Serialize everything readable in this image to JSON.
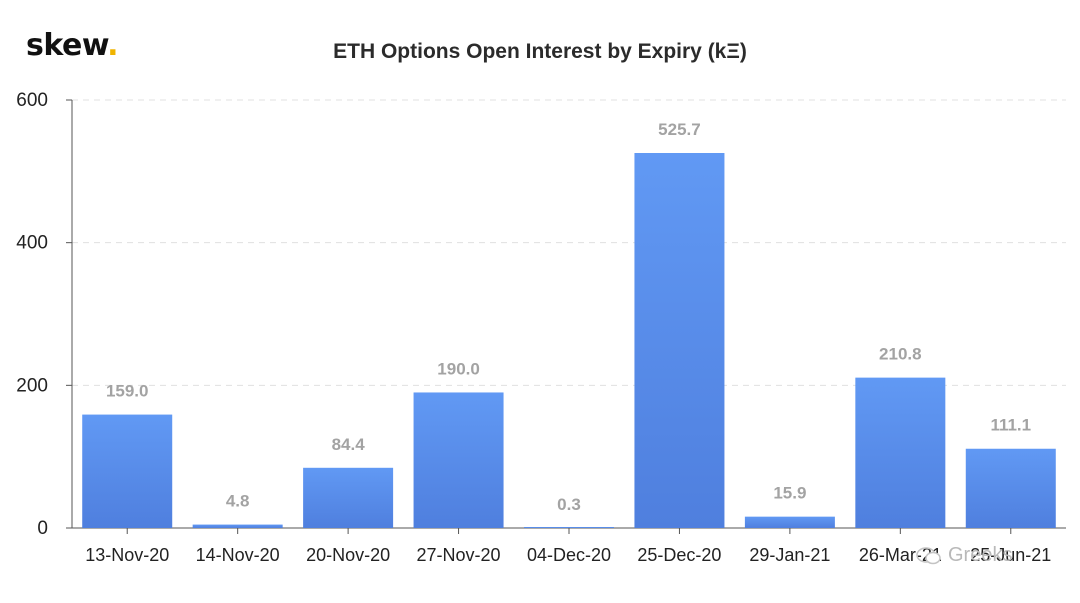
{
  "logo": {
    "text": "skew",
    "dot": "."
  },
  "chart_data": {
    "type": "bar",
    "title": "ETH Options Open Interest by Expiry (kΞ)",
    "xlabel": "",
    "ylabel": "",
    "categories": [
      "13-Nov-20",
      "14-Nov-20",
      "20-Nov-20",
      "27-Nov-20",
      "04-Dec-20",
      "25-Dec-20",
      "29-Jan-21",
      "26-Mar-21",
      "25-Jun-21"
    ],
    "values": [
      159.0,
      4.8,
      84.4,
      190.0,
      0.3,
      525.7,
      15.9,
      210.8,
      111.1
    ],
    "data_labels": [
      "159.0",
      "4.8",
      "84.4",
      "190.0",
      "0.3",
      "525.7",
      "15.9",
      "210.8",
      "111.1"
    ],
    "ylim": [
      0,
      600
    ],
    "yticks": [
      0,
      200,
      400,
      600
    ],
    "grid": true,
    "colors": {
      "bar_top": "#6199f4",
      "bar_bottom": "#4f7fde",
      "label": "#a3a3a3",
      "tick": "#222222",
      "grid": "#e0e0e0"
    }
  },
  "watermark": {
    "text": "Greeks"
  }
}
